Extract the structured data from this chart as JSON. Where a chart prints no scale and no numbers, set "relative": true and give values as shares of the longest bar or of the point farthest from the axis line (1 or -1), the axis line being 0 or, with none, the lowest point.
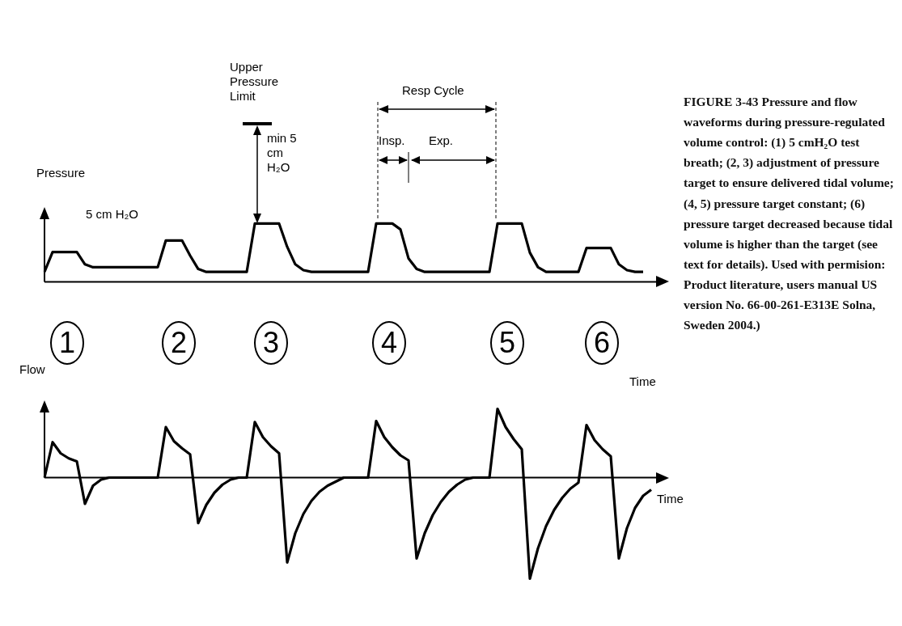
{
  "chart_data": [
    {
      "type": "line",
      "relative": true,
      "ylabel": "Pressure",
      "xlabel": "Time",
      "marker": "none",
      "categories": [
        null,
        null,
        null,
        null,
        null,
        null,
        null,
        null,
        null,
        null,
        null,
        null,
        null,
        null,
        null,
        null,
        null,
        null,
        null,
        null,
        null,
        null,
        null,
        null,
        null,
        null,
        null,
        null,
        null,
        null,
        null,
        null,
        null,
        null,
        null,
        null,
        null,
        null,
        null,
        null,
        null,
        null,
        null,
        null,
        null,
        null,
        null,
        null,
        null,
        null,
        null,
        null,
        null,
        null,
        null,
        null,
        null,
        null,
        null,
        null,
        null,
        null,
        null,
        null,
        null,
        null,
        null,
        null,
        null,
        null,
        null,
        null,
        null,
        null,
        null,
        null
      ],
      "series": [
        {
          "color": "#000000",
          "values": [
            0.17,
            0.51,
            0.51,
            0.51,
            0.51,
            0.3,
            0.25,
            0.25,
            0.25,
            0.25,
            0.25,
            0.25,
            0.25,
            0.25,
            0.25,
            0.71,
            0.71,
            0.71,
            0.45,
            0.22,
            0.17,
            0.17,
            0.17,
            0.17,
            0.17,
            0.17,
            1,
            1,
            1,
            1,
            0.6,
            0.3,
            0.2,
            0.17,
            0.17,
            0.17,
            0.17,
            0.17,
            0.17,
            0.17,
            0.17,
            1,
            1,
            1,
            0.9,
            0.4,
            0.22,
            0.17,
            0.17,
            0.17,
            0.17,
            0.17,
            0.17,
            0.17,
            0.17,
            0.17,
            1,
            1,
            1,
            1,
            0.5,
            0.25,
            0.17,
            0.17,
            0.17,
            0.17,
            0.17,
            0.58,
            0.58,
            0.58,
            0.58,
            0.3,
            0.2,
            0.17,
            0.17,
            null
          ]
        }
      ],
      "annotations": [
        "Upper Pressure Limit",
        "min 5 cm H₂O",
        "5 cm H₂O",
        "Resp Cycle",
        "Insp.",
        "Exp.",
        "FIGURE 3-43 Pressure and flow waveforms during pressure-regulated volume control: (1) 5 cmH₂O test breath; (2, 3) adjustment of pressure target to ensure delivered tidal volume; (4, 5) pressure target constant; (6) pressure target decreased because tidal volume is higher than the target (see text for details). Used with permision: Product literature, users manual US version No. 66-00-261-E313E Solna, Sweden 2004.)"
      ]
    },
    {
      "type": "line",
      "relative": true,
      "ylabel": "Flow",
      "xlabel": "Time",
      "marker": "none",
      "categories": [
        null,
        null,
        null,
        null,
        null,
        null,
        null,
        null,
        null,
        null,
        null,
        null,
        null,
        null,
        null,
        null,
        null,
        null,
        null,
        null,
        null,
        null,
        null,
        null,
        null,
        null,
        null,
        null,
        null,
        null,
        null,
        null,
        null,
        null,
        null,
        null,
        null,
        null,
        null,
        null,
        null,
        null,
        null,
        null,
        null,
        null,
        null,
        null,
        null,
        null,
        null,
        null,
        null,
        null,
        null,
        null,
        null,
        null,
        null,
        null,
        null,
        null,
        null,
        null,
        null,
        null,
        null,
        null,
        null,
        null,
        null,
        null,
        null,
        null,
        null,
        null
      ],
      "series": [
        {
          "color": "#000000",
          "values": [
            0,
            0.35,
            0.24,
            0.19,
            0.16,
            -0.26,
            -0.08,
            -0.02,
            0,
            0,
            0,
            0,
            0,
            0,
            0,
            0.5,
            0.36,
            0.29,
            0.23,
            -0.45,
            -0.27,
            -0.15,
            -0.07,
            -0.02,
            0,
            0,
            0.55,
            0.4,
            0.31,
            0.24,
            -0.84,
            -0.55,
            -0.36,
            -0.23,
            -0.14,
            -0.08,
            -0.04,
            0,
            0,
            0,
            0,
            0.56,
            0.4,
            0.3,
            0.22,
            0.17,
            -0.8,
            -0.55,
            -0.37,
            -0.24,
            -0.14,
            -0.07,
            -0.02,
            0,
            0,
            0,
            0.68,
            0.5,
            0.38,
            0.28,
            -1,
            -0.7,
            -0.48,
            -0.32,
            -0.2,
            -0.11,
            -0.05,
            0.52,
            0.37,
            0.28,
            0.21,
            -0.8,
            -0.5,
            -0.3,
            -0.18,
            -0.12
          ]
        }
      ],
      "annotations": [
        "1",
        "2",
        "3",
        "4",
        "5",
        "6"
      ]
    }
  ]
}
